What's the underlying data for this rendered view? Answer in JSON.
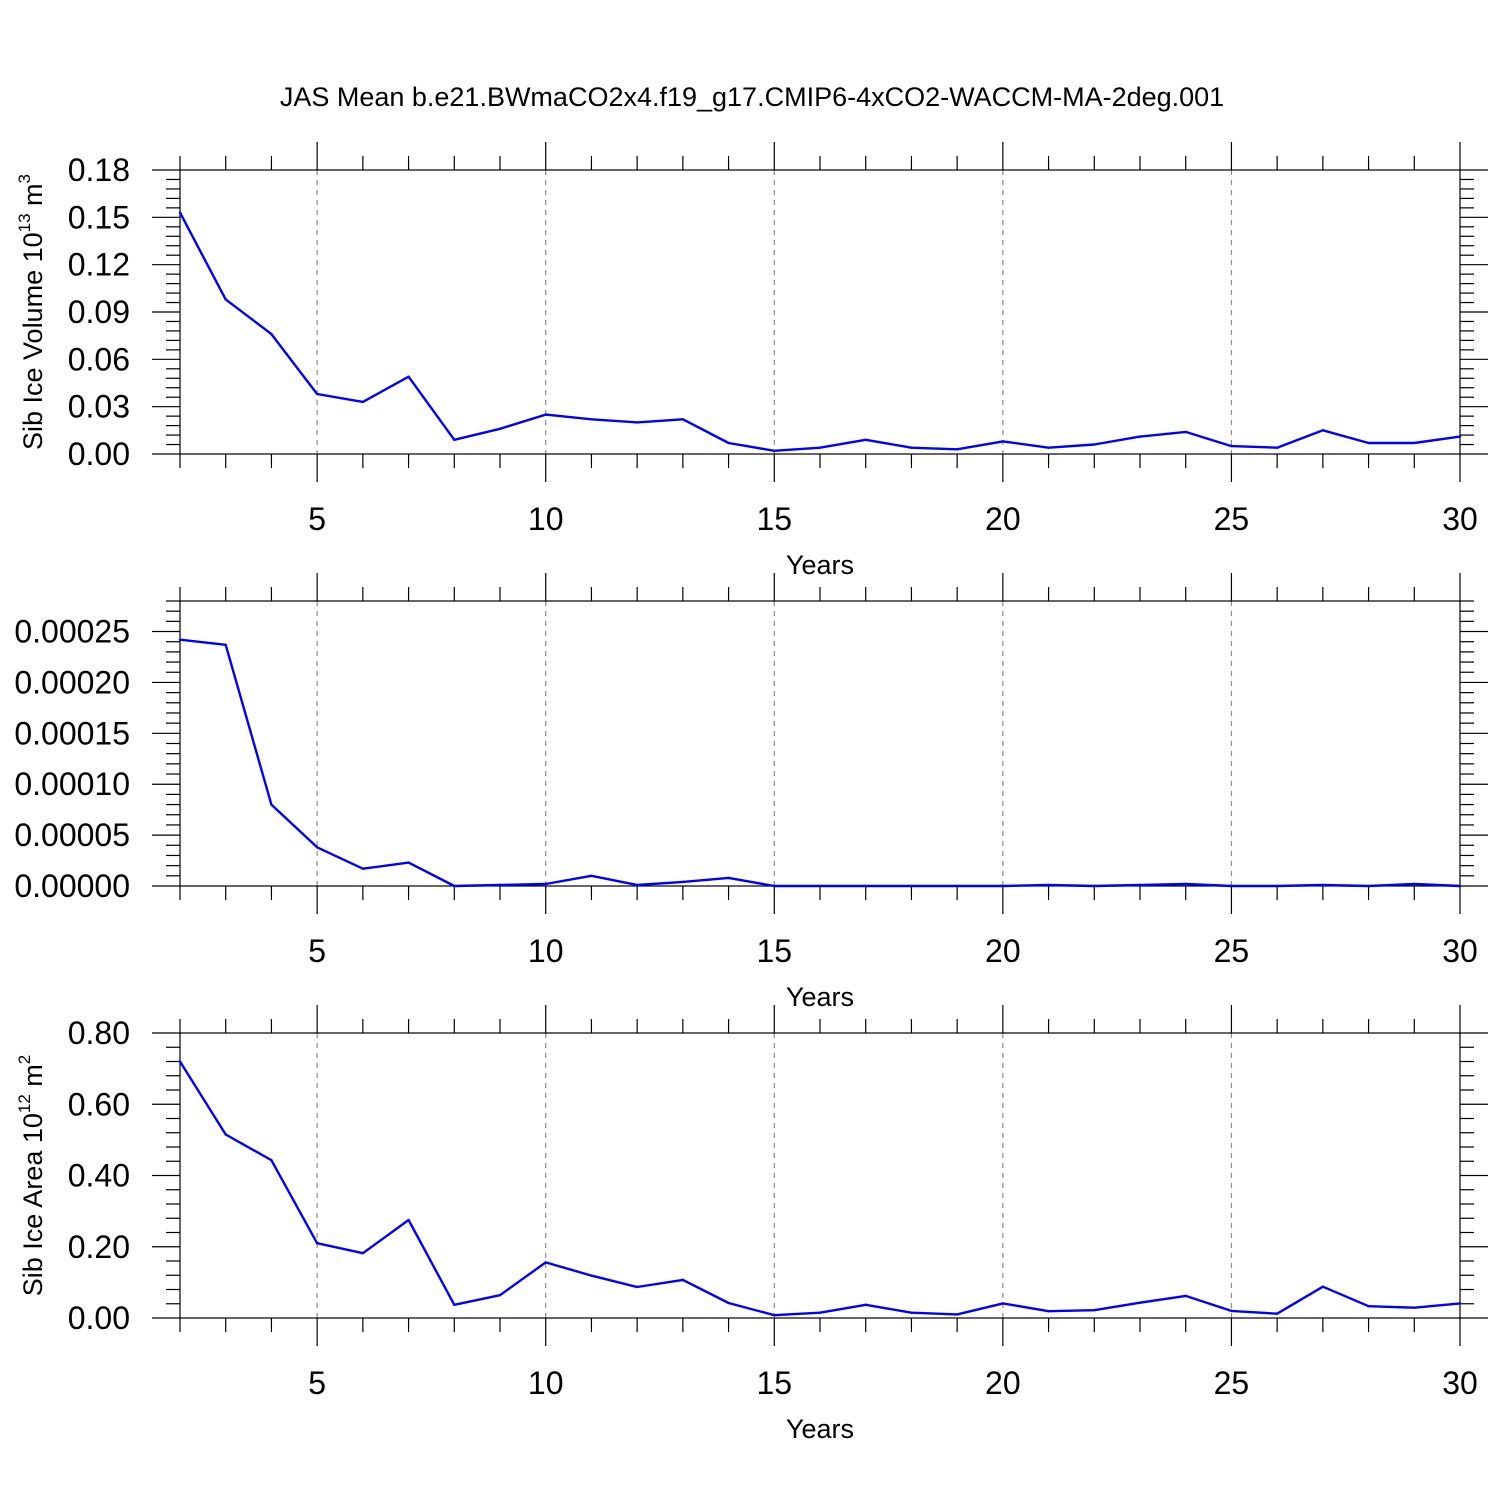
{
  "title": "JAS Mean b.e21.BWmaCO2x4.f19_g17.CMIP6-4xCO2-WACCM-MA-2deg.001",
  "colors": {
    "line": "#0000ff",
    "axis": "#000000",
    "grid": "#8c8c8c"
  },
  "chart_data": [
    {
      "type": "line",
      "xlabel": "Years",
      "ylabel": {
        "text": "Sib Ice Volume 10",
        "sup1": "13",
        "mid": " m",
        "sup2": "3"
      },
      "xlim": [
        2,
        30
      ],
      "ylim": [
        0,
        0.18
      ],
      "xticks": [
        5,
        10,
        15,
        20,
        25,
        30
      ],
      "yticks": [
        0.0,
        0.03,
        0.06,
        0.09,
        0.12,
        0.15,
        0.18
      ],
      "ytick_labels": [
        "0.00",
        "0.03",
        "0.06",
        "0.09",
        "0.12",
        "0.15",
        "0.18"
      ],
      "x": [
        2,
        3,
        4,
        5,
        6,
        7,
        8,
        9,
        10,
        11,
        12,
        13,
        14,
        15,
        16,
        17,
        18,
        19,
        20,
        21,
        22,
        23,
        24,
        25,
        26,
        27,
        28,
        29,
        30
      ],
      "y": [
        0.153,
        0.098,
        0.076,
        0.038,
        0.033,
        0.049,
        0.009,
        0.016,
        0.025,
        0.022,
        0.02,
        0.022,
        0.007,
        0.002,
        0.004,
        0.009,
        0.004,
        0.003,
        0.008,
        0.004,
        0.006,
        0.011,
        0.014,
        0.005,
        0.004,
        0.015,
        0.007,
        0.007,
        0.011
      ]
    },
    {
      "type": "line",
      "xlabel": "Years",
      "xlim": [
        2,
        30
      ],
      "ylim": [
        0,
        0.00028
      ],
      "xticks": [
        5,
        10,
        15,
        20,
        25,
        30
      ],
      "yticks": [
        0,
        5e-05,
        0.0001,
        0.00015,
        0.0002,
        0.00025
      ],
      "ytick_labels": [
        "0.00000",
        "0.00005",
        "0.00010",
        "0.00015",
        "0.00020",
        "0.00025"
      ],
      "x": [
        2,
        3,
        4,
        5,
        6,
        7,
        8,
        9,
        10,
        11,
        12,
        13,
        14,
        15,
        16,
        17,
        18,
        19,
        20,
        21,
        22,
        23,
        24,
        25,
        26,
        27,
        28,
        29,
        30
      ],
      "y": [
        0.000242,
        0.000237,
        8e-05,
        3.8e-05,
        1.7e-05,
        2.3e-05,
        0.0,
        1e-06,
        2e-06,
        1e-05,
        1e-06,
        4e-06,
        8e-06,
        0.0,
        0.0,
        0.0,
        0.0,
        0.0,
        0.0,
        1e-06,
        0.0,
        1e-06,
        2e-06,
        0.0,
        0.0,
        1e-06,
        0.0,
        2e-06,
        0.0
      ]
    },
    {
      "type": "line",
      "xlabel": "Years",
      "ylabel": {
        "text": "Sib Ice Area 10",
        "sup1": "12",
        "mid": " m",
        "sup2": "2"
      },
      "xlim": [
        2,
        30
      ],
      "ylim": [
        0,
        0.8
      ],
      "xticks": [
        5,
        10,
        15,
        20,
        25,
        30
      ],
      "yticks": [
        0,
        0.2,
        0.4,
        0.6,
        0.8
      ],
      "ytick_labels": [
        "0.00",
        "0.20",
        "0.40",
        "0.60",
        "0.80"
      ],
      "x": [
        2,
        3,
        4,
        5,
        6,
        7,
        8,
        9,
        10,
        11,
        12,
        13,
        14,
        15,
        16,
        17,
        18,
        19,
        20,
        21,
        22,
        23,
        24,
        25,
        26,
        27,
        28,
        29,
        30
      ],
      "y": [
        0.72,
        0.515,
        0.443,
        0.21,
        0.182,
        0.275,
        0.037,
        0.064,
        0.156,
        0.119,
        0.087,
        0.107,
        0.042,
        0.008,
        0.015,
        0.037,
        0.015,
        0.01,
        0.041,
        0.019,
        0.022,
        0.043,
        0.062,
        0.02,
        0.012,
        0.088,
        0.033,
        0.029,
        0.041
      ]
    }
  ]
}
